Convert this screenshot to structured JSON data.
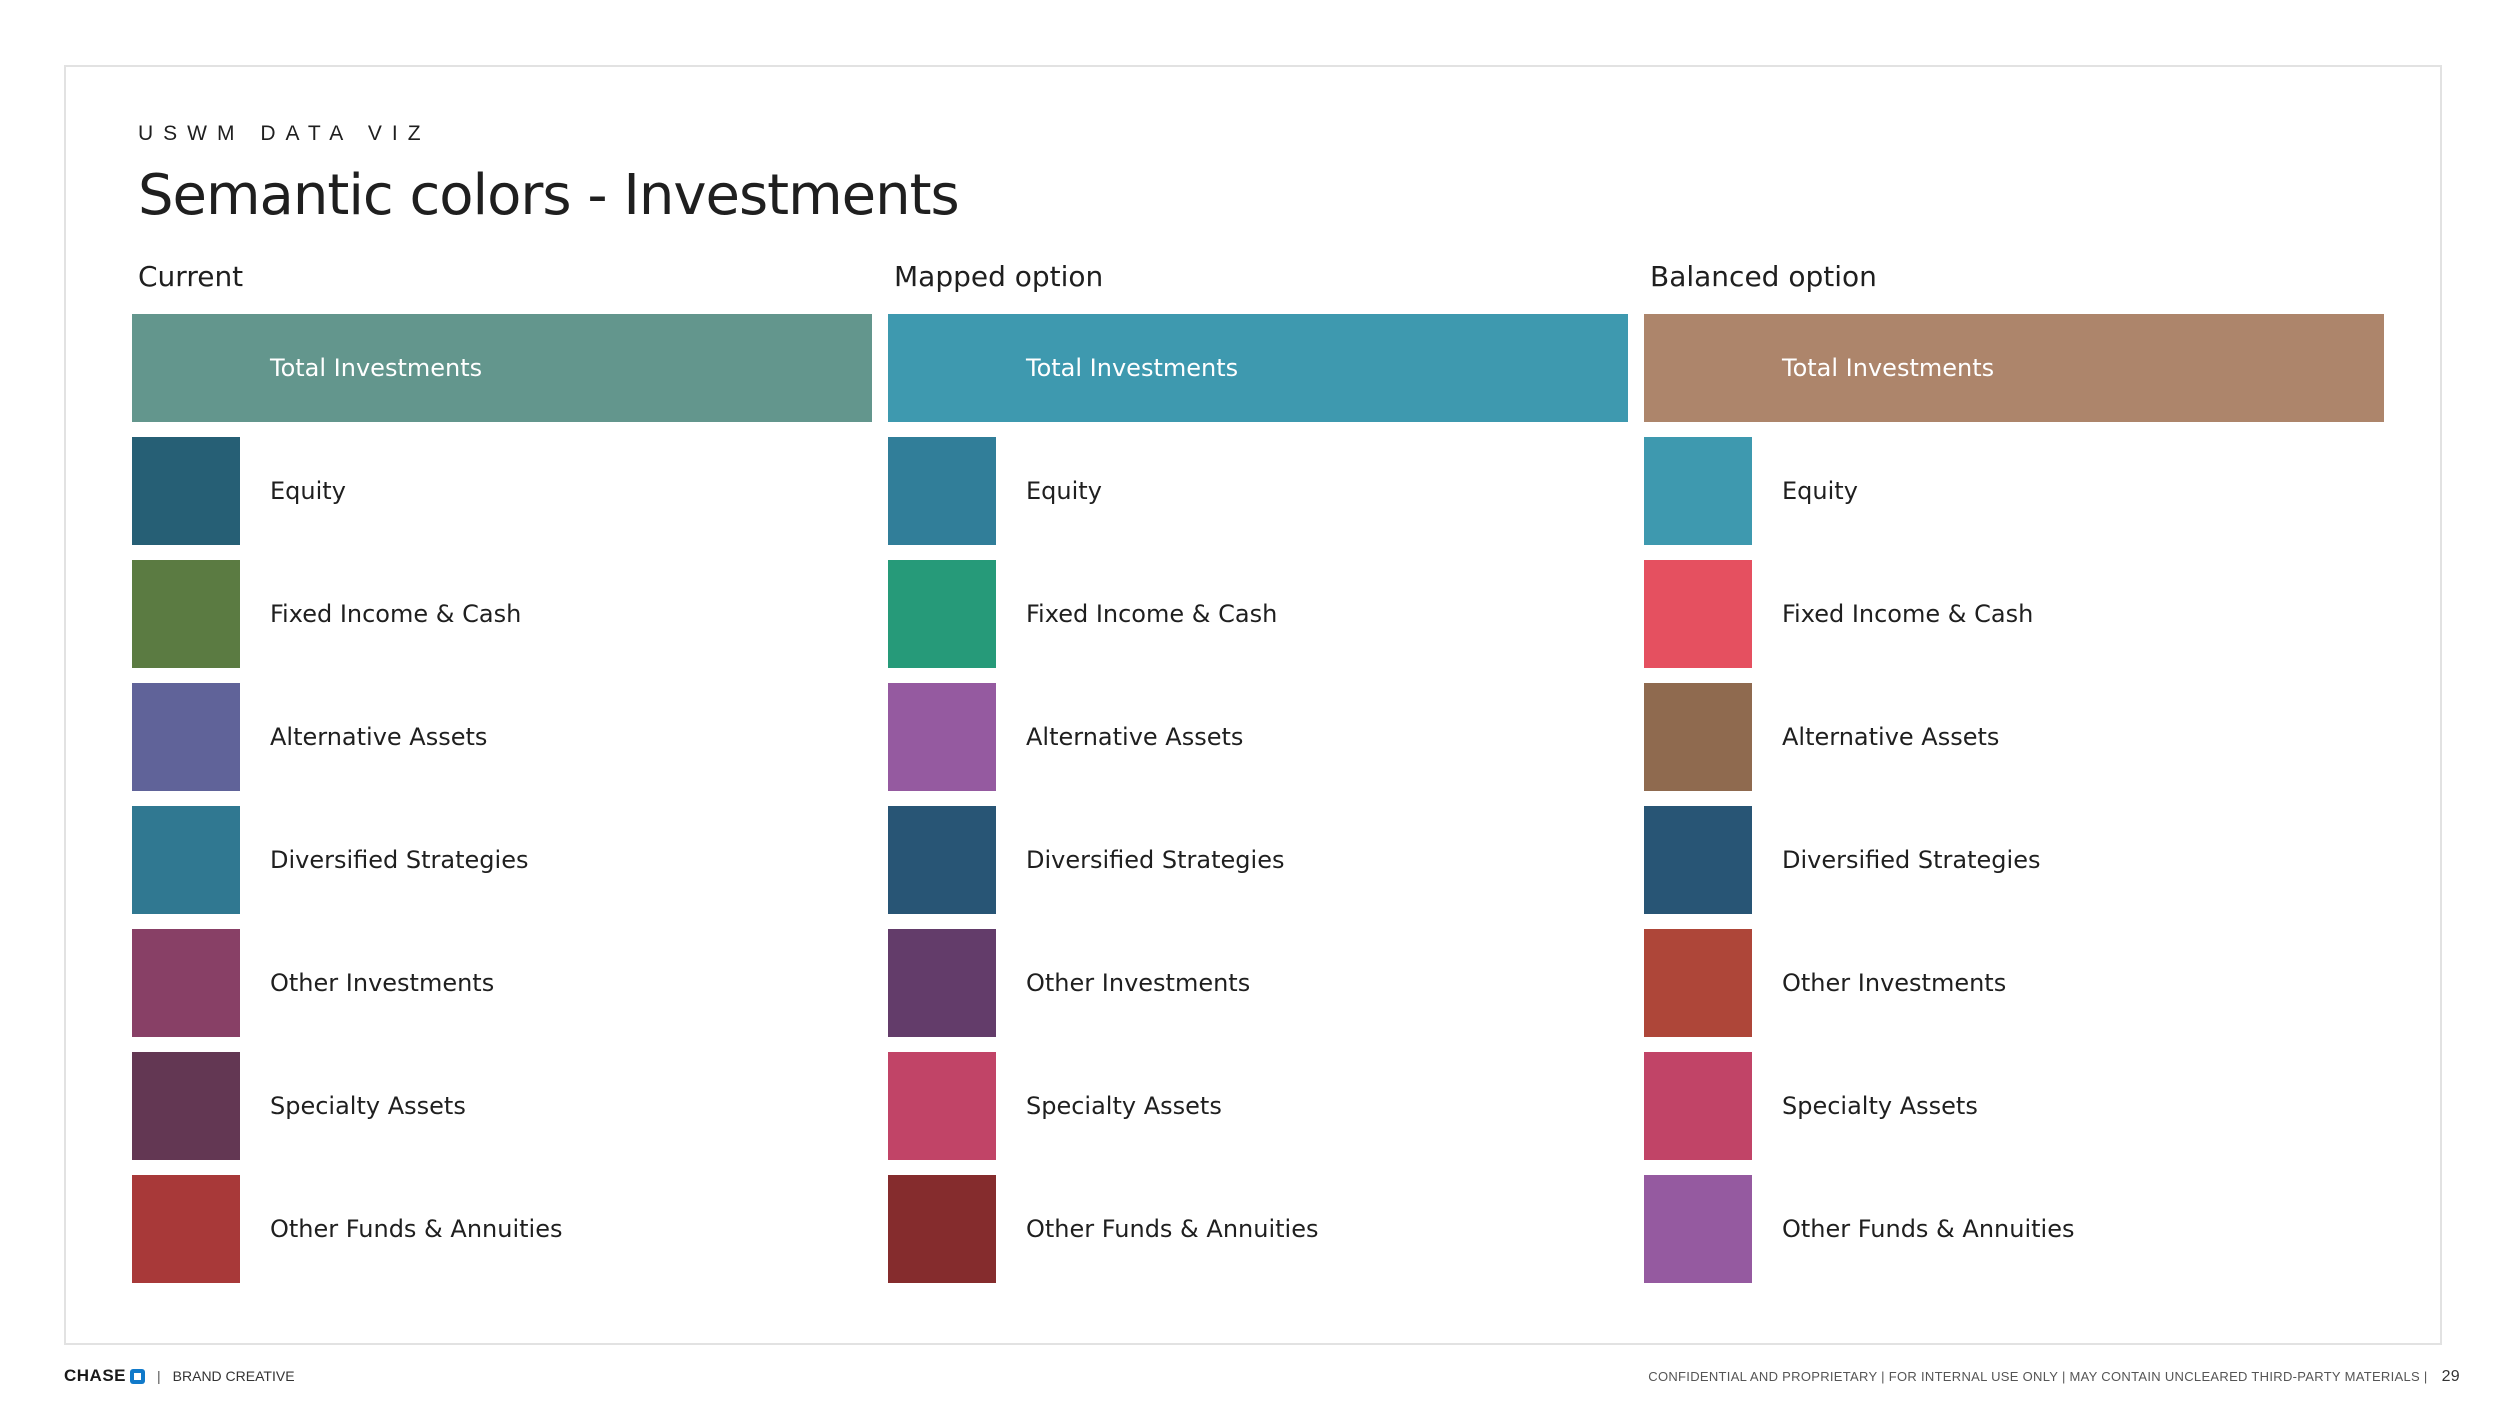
{
  "header": {
    "eyebrow": "USWM DATA VIZ",
    "title": "Semantic colors - Investments"
  },
  "columns": [
    {
      "heading": "Current",
      "total": {
        "label": "Total Investments",
        "color": "#63968d"
      },
      "items": [
        {
          "label": "Equity",
          "color": "#265f75"
        },
        {
          "label": "Fixed Income & Cash",
          "color": "#5b7b42"
        },
        {
          "label": "Alternative Assets",
          "color": "#606399"
        },
        {
          "label": "Diversified Strategies",
          "color": "#307891"
        },
        {
          "label": "Other Investments",
          "color": "#884066"
        },
        {
          "label": "Specialty Assets",
          "color": "#633753"
        },
        {
          "label": "Other Funds & Annuities",
          "color": "#a83939"
        }
      ]
    },
    {
      "heading": "Mapped option",
      "total": {
        "label": "Total Investments",
        "color": "#3e99af"
      },
      "items": [
        {
          "label": "Equity",
          "color": "#317e99"
        },
        {
          "label": "Fixed Income & Cash",
          "color": "#269a79"
        },
        {
          "label": "Alternative Assets",
          "color": "#955aa0"
        },
        {
          "label": "Diversified Strategies",
          "color": "#285575"
        },
        {
          "label": "Other Investments",
          "color": "#633c6a"
        },
        {
          "label": "Specialty Assets",
          "color": "#c14467"
        },
        {
          "label": "Other Funds & Annuities",
          "color": "#852c2d"
        }
      ]
    },
    {
      "heading": "Balanced option",
      "total": {
        "label": "Total Investments",
        "color": "#ad856b"
      },
      "items": [
        {
          "label": "Equity",
          "color": "#3e99af"
        },
        {
          "label": "Fixed Income & Cash",
          "color": "#e55060"
        },
        {
          "label": "Alternative Assets",
          "color": "#8f6a4f"
        },
        {
          "label": "Diversified Strategies",
          "color": "#285575"
        },
        {
          "label": "Other Investments",
          "color": "#ae4639"
        },
        {
          "label": "Specialty Assets",
          "color": "#c14467"
        },
        {
          "label": "Other Funds & Annuities",
          "color": "#955aa0"
        }
      ]
    }
  ],
  "footer": {
    "brand": "CHASE",
    "separator": "|",
    "department": "BRAND CREATIVE",
    "disclaimer": "CONFIDENTIAL AND PROPRIETARY | FOR INTERNAL USE ONLY | MAY CONTAIN UNCLEARED THIRD-PARTY MATERIALS |",
    "page_number": "29"
  }
}
